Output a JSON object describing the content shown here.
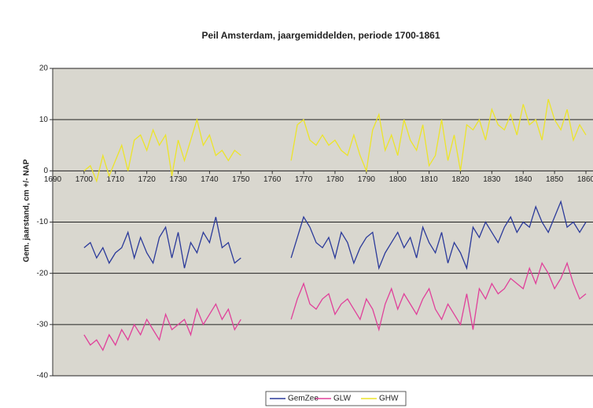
{
  "chart_data": {
    "type": "line",
    "title": "Peil Amsterdam, jaargemiddelden, periode 1700-1861",
    "y_label": "Gem. jaarstand, cm +/- NAP",
    "x": [
      1700,
      1702,
      1704,
      1706,
      1708,
      1710,
      1712,
      1714,
      1716,
      1718,
      1720,
      1722,
      1724,
      1726,
      1728,
      1730,
      1732,
      1734,
      1736,
      1738,
      1740,
      1742,
      1744,
      1746,
      1748,
      1750,
      1752,
      1754,
      1756,
      1758,
      1760,
      1762,
      1764,
      1766,
      1768,
      1770,
      1772,
      1774,
      1776,
      1778,
      1780,
      1782,
      1784,
      1786,
      1788,
      1790,
      1792,
      1794,
      1796,
      1798,
      1800,
      1802,
      1804,
      1806,
      1808,
      1810,
      1812,
      1814,
      1816,
      1818,
      1820,
      1822,
      1824,
      1826,
      1828,
      1830,
      1832,
      1834,
      1836,
      1838,
      1840,
      1842,
      1844,
      1846,
      1848,
      1850,
      1852,
      1854,
      1856,
      1858,
      1860
    ],
    "series": [
      {
        "name": "GemZee",
        "color": "#2b3a9a",
        "values": [
          -15,
          -14,
          -17,
          -15,
          -18,
          -16,
          -15,
          -12,
          -17,
          -13,
          -16,
          -18,
          -13,
          -11,
          -17,
          -12,
          -19,
          -14,
          -16,
          -12,
          -14,
          -9,
          -15,
          -14,
          -18,
          -17,
          null,
          null,
          null,
          null,
          null,
          null,
          null,
          -17,
          -13,
          -9,
          -11,
          -14,
          -15,
          -13,
          -17,
          -12,
          -14,
          -18,
          -15,
          -13,
          -12,
          -19,
          -16,
          -14,
          -12,
          -15,
          -13,
          -17,
          -11,
          -14,
          -16,
          -12,
          -18,
          -14,
          -16,
          -19,
          -11,
          -13,
          -10,
          -12,
          -14,
          -11,
          -9,
          -12,
          -10,
          -11,
          -7,
          -10,
          -12,
          -9,
          -6,
          -11,
          -10,
          -12,
          -10
        ]
      },
      {
        "name": "GLW",
        "color": "#e0409a",
        "values": [
          -32,
          -34,
          -33,
          -35,
          -32,
          -34,
          -31,
          -33,
          -30,
          -32,
          -29,
          -31,
          -33,
          -28,
          -31,
          -30,
          -29,
          -32,
          -27,
          -30,
          -28,
          -26,
          -29,
          -27,
          -31,
          -29,
          null,
          null,
          null,
          null,
          null,
          null,
          null,
          -29,
          -25,
          -22,
          -26,
          -27,
          -25,
          -24,
          -28,
          -26,
          -25,
          -27,
          -29,
          -25,
          -27,
          -31,
          -26,
          -23,
          -27,
          -24,
          -26,
          -28,
          -25,
          -23,
          -27,
          -29,
          -26,
          -28,
          -30,
          -24,
          -31,
          -23,
          -25,
          -22,
          -24,
          -23,
          -21,
          -22,
          -23,
          -19,
          -22,
          -18,
          -20,
          -23,
          -21,
          -18,
          -22,
          -25,
          -24
        ]
      },
      {
        "name": "GHW",
        "color": "#ece42a",
        "values": [
          0,
          1,
          -2,
          3,
          -1,
          2,
          5,
          0,
          6,
          7,
          4,
          8,
          5,
          7,
          -1,
          6,
          2,
          6,
          10,
          5,
          7,
          3,
          4,
          2,
          4,
          3,
          null,
          null,
          null,
          null,
          null,
          null,
          null,
          2,
          9,
          10,
          6,
          5,
          7,
          5,
          6,
          4,
          3,
          7,
          3,
          0,
          8,
          11,
          4,
          7,
          3,
          10,
          6,
          4,
          9,
          1,
          3,
          10,
          2,
          7,
          0,
          9,
          8,
          10,
          6,
          12,
          9,
          8,
          11,
          7,
          13,
          9,
          10,
          6,
          14,
          10,
          8,
          12,
          6,
          9,
          7
        ]
      }
    ],
    "xlim": [
      1690,
      1861
    ],
    "xticks": [
      1690,
      1700,
      1710,
      1720,
      1730,
      1740,
      1750,
      1760,
      1770,
      1780,
      1790,
      1800,
      1810,
      1820,
      1830,
      1840,
      1850,
      1860
    ],
    "ylim": [
      -40,
      20
    ],
    "yticks": [
      -40,
      -30,
      -20,
      -10,
      0,
      10,
      20
    ],
    "grid": true
  }
}
